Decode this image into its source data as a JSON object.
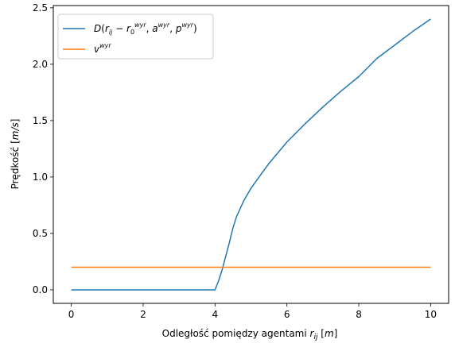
{
  "chart_data": {
    "type": "line",
    "xlabel": "Odległość pomiędzy agentami r_ij [m]",
    "ylabel": "Prędkość [m/s]",
    "xlim": [
      -0.5,
      10.5
    ],
    "ylim": [
      -0.12,
      2.52
    ],
    "xticks": [
      0,
      2,
      4,
      6,
      8,
      10
    ],
    "yticks": [
      0.0,
      0.5,
      1.0,
      1.5,
      2.0,
      2.5
    ],
    "xtick_labels": [
      "0",
      "2",
      "4",
      "6",
      "8",
      "10"
    ],
    "ytick_labels": [
      "0.0",
      "0.5",
      "1.0",
      "1.5",
      "2.0",
      "2.5"
    ],
    "grid": false,
    "legend_position": "top-left",
    "series": [
      {
        "name": "D(r_ij − r_0^wyr, a^wyr, p^wyr)",
        "color": "#1f77b4",
        "x": [
          0,
          4.0,
          4.1,
          4.2,
          4.3,
          4.4,
          4.5,
          4.6,
          4.8,
          5.0,
          5.5,
          6.0,
          6.5,
          7.0,
          7.5,
          8.0,
          8.5,
          9.0,
          9.5,
          10.0
        ],
        "y": [
          0,
          0,
          0.08,
          0.18,
          0.3,
          0.42,
          0.55,
          0.65,
          0.79,
          0.9,
          1.12,
          1.31,
          1.47,
          1.62,
          1.76,
          1.89,
          2.05,
          2.17,
          2.29,
          2.4
        ]
      },
      {
        "name": "v^wyr",
        "color": "#ff7f0e",
        "x": [
          0,
          10
        ],
        "y": [
          0.2,
          0.2
        ]
      }
    ]
  }
}
